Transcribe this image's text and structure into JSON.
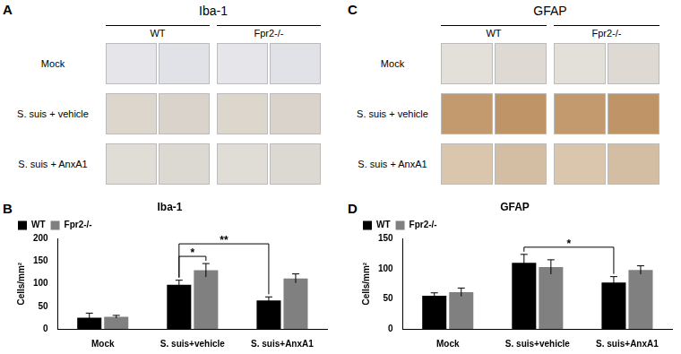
{
  "figure": {
    "panels": [
      {
        "label": "A",
        "title": "Iba-1",
        "columns": [
          "WT",
          "Fpr2-/-"
        ],
        "rows": [
          "Mock",
          "S. suis + vehicle",
          "S. suis + AnxA1"
        ]
      },
      {
        "label": "C",
        "title": "GFAP",
        "columns": [
          "WT",
          "Fpr2-/-"
        ],
        "rows": [
          "Mock",
          "S. suis + vehicle",
          "S. suis + AnxA1"
        ]
      }
    ]
  },
  "chart_data": [
    {
      "panel": "B",
      "type": "bar",
      "title": "Iba-1",
      "y_label": "Cells/mm²",
      "categories": [
        "Mock",
        "S. suis+vehicle",
        "S. suis+AnxA1"
      ],
      "series": [
        {
          "name": "WT",
          "color": "#000000",
          "values": [
            25,
            98,
            63
          ],
          "errors": [
            10,
            10,
            8
          ]
        },
        {
          "name": "Fpr2-/-",
          "color": "#808080",
          "values": [
            27,
            130,
            112
          ],
          "errors": [
            3,
            15,
            10
          ]
        }
      ],
      "ylim": [
        0,
        200
      ],
      "yticks": [
        0,
        50,
        100,
        150,
        200
      ],
      "grid": false,
      "legend": "top-left",
      "significance": [
        {
          "label": "*",
          "between": [
            {
              "category": "S. suis+vehicle",
              "series": "WT"
            },
            {
              "category": "S. suis+vehicle",
              "series": "Fpr2-/-"
            }
          ]
        },
        {
          "label": "**",
          "between": [
            {
              "category": "S. suis+vehicle",
              "series": "WT"
            },
            {
              "category": "S. suis+AnxA1",
              "series": "WT"
            }
          ]
        }
      ]
    },
    {
      "panel": "D",
      "type": "bar",
      "title": "GFAP",
      "y_label": "Cells/mm²",
      "categories": [
        "Mock",
        "S. suis+vehicle",
        "S. suis+AnxA1"
      ],
      "series": [
        {
          "name": "WT",
          "color": "#000000",
          "values": [
            55,
            110,
            77
          ],
          "errors": [
            5,
            14,
            10
          ]
        },
        {
          "name": "Fpr2-/-",
          "color": "#808080",
          "values": [
            61,
            103,
            98
          ],
          "errors": [
            7,
            12,
            7
          ]
        }
      ],
      "ylim": [
        0,
        150
      ],
      "yticks": [
        0,
        50,
        100,
        150
      ],
      "grid": false,
      "legend": "top-left",
      "significance": [
        {
          "label": "*",
          "between": [
            {
              "category": "S. suis+vehicle",
              "series": "WT"
            },
            {
              "category": "S. suis+AnxA1",
              "series": "WT"
            }
          ]
        }
      ]
    }
  ]
}
